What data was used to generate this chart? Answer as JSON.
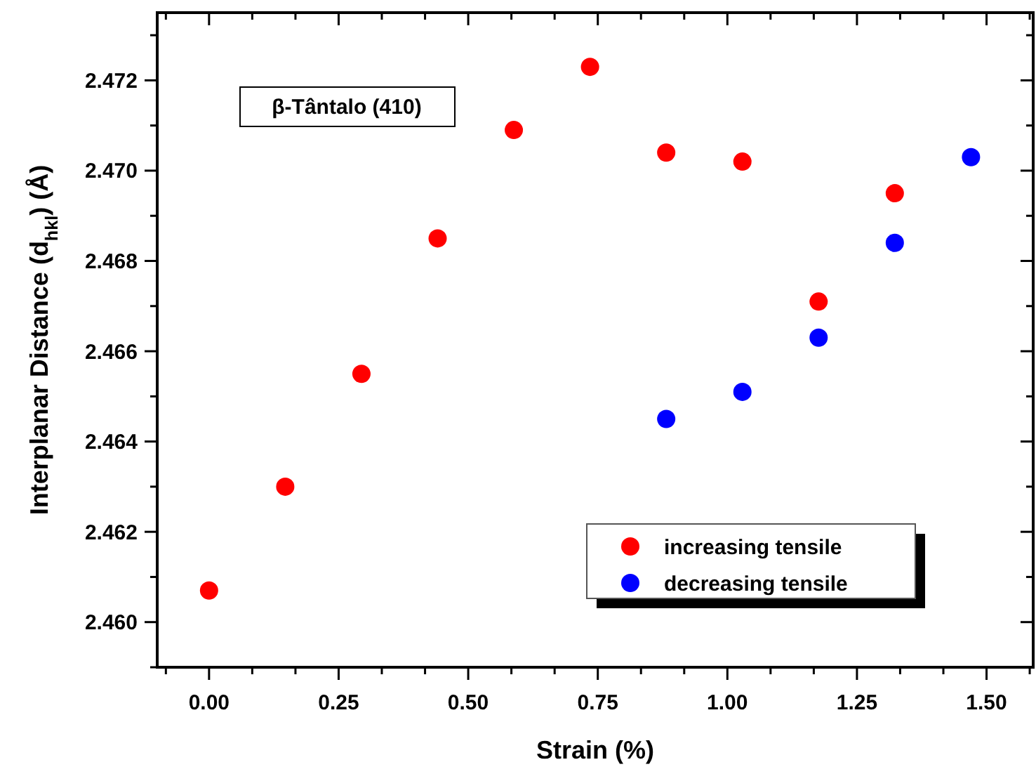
{
  "chart_data": {
    "type": "scatter",
    "xlabel": "Strain (%)",
    "ylabel": "Interplanar Distance (d$_{hkl}$) (Å)",
    "annotations": [
      "β-Tântalo (410)"
    ],
    "xlim": [
      -0.1,
      1.59
    ],
    "ylim": [
      2.459,
      2.4735
    ],
    "xticks": [
      {
        "value": -0.0833,
        "label": null
      },
      {
        "value": 0,
        "label": "0.00"
      },
      {
        "value": 0.0833,
        "label": null
      },
      {
        "value": 0.1667,
        "label": null
      },
      {
        "value": 0.25,
        "label": "0.25"
      },
      {
        "value": 0.3333,
        "label": null
      },
      {
        "value": 0.4167,
        "label": null
      },
      {
        "value": 0.5,
        "label": "0.50"
      },
      {
        "value": 0.5833,
        "label": null
      },
      {
        "value": 0.6667,
        "label": null
      },
      {
        "value": 0.75,
        "label": "0.75"
      },
      {
        "value": 0.8333,
        "label": null
      },
      {
        "value": 0.9167,
        "label": null
      },
      {
        "value": 1,
        "label": "1.00"
      },
      {
        "value": 1.0833,
        "label": null
      },
      {
        "value": 1.1667,
        "label": null
      },
      {
        "value": 1.25,
        "label": "1.25"
      },
      {
        "value": 1.3333,
        "label": null
      },
      {
        "value": 1.4167,
        "label": null
      },
      {
        "value": 1.5,
        "label": "1.50"
      },
      {
        "value": 1.5833,
        "label": null
      }
    ],
    "yticks": [
      {
        "value": 2.459,
        "label": null
      },
      {
        "value": 2.46,
        "label": "2.460"
      },
      {
        "value": 2.461,
        "label": null
      },
      {
        "value": 2.462,
        "label": "2.462"
      },
      {
        "value": 2.463,
        "label": null
      },
      {
        "value": 2.464,
        "label": "2.464"
      },
      {
        "value": 2.465,
        "label": null
      },
      {
        "value": 2.466,
        "label": "2.466"
      },
      {
        "value": 2.467,
        "label": null
      },
      {
        "value": 2.468,
        "label": "2.468"
      },
      {
        "value": 2.469,
        "label": null
      },
      {
        "value": 2.47,
        "label": "2.470"
      },
      {
        "value": 2.471,
        "label": null
      },
      {
        "value": 2.472,
        "label": "2.472"
      },
      {
        "value": 2.473,
        "label": null
      }
    ],
    "grid": false,
    "legend": "bottom right",
    "marker": "circle",
    "series": [
      {
        "name": "increasing tensile",
        "color": "#ff0000",
        "x": [
          0,
          0.147,
          0.294,
          0.441,
          0.588,
          0.735,
          0.882,
          1.029,
          1.176,
          1.323
        ],
        "values": [
          2.4607,
          2.463,
          2.4655,
          2.4685,
          2.4709,
          2.4723,
          2.4704,
          2.4702,
          2.4671,
          2.4695
        ]
      },
      {
        "name": "decreasing tensile",
        "color": "#0000ff",
        "x": [
          0.882,
          1.029,
          1.176,
          1.323,
          1.47
        ],
        "values": [
          2.4645,
          2.4651,
          2.4663,
          2.4684,
          2.4703
        ]
      }
    ]
  }
}
